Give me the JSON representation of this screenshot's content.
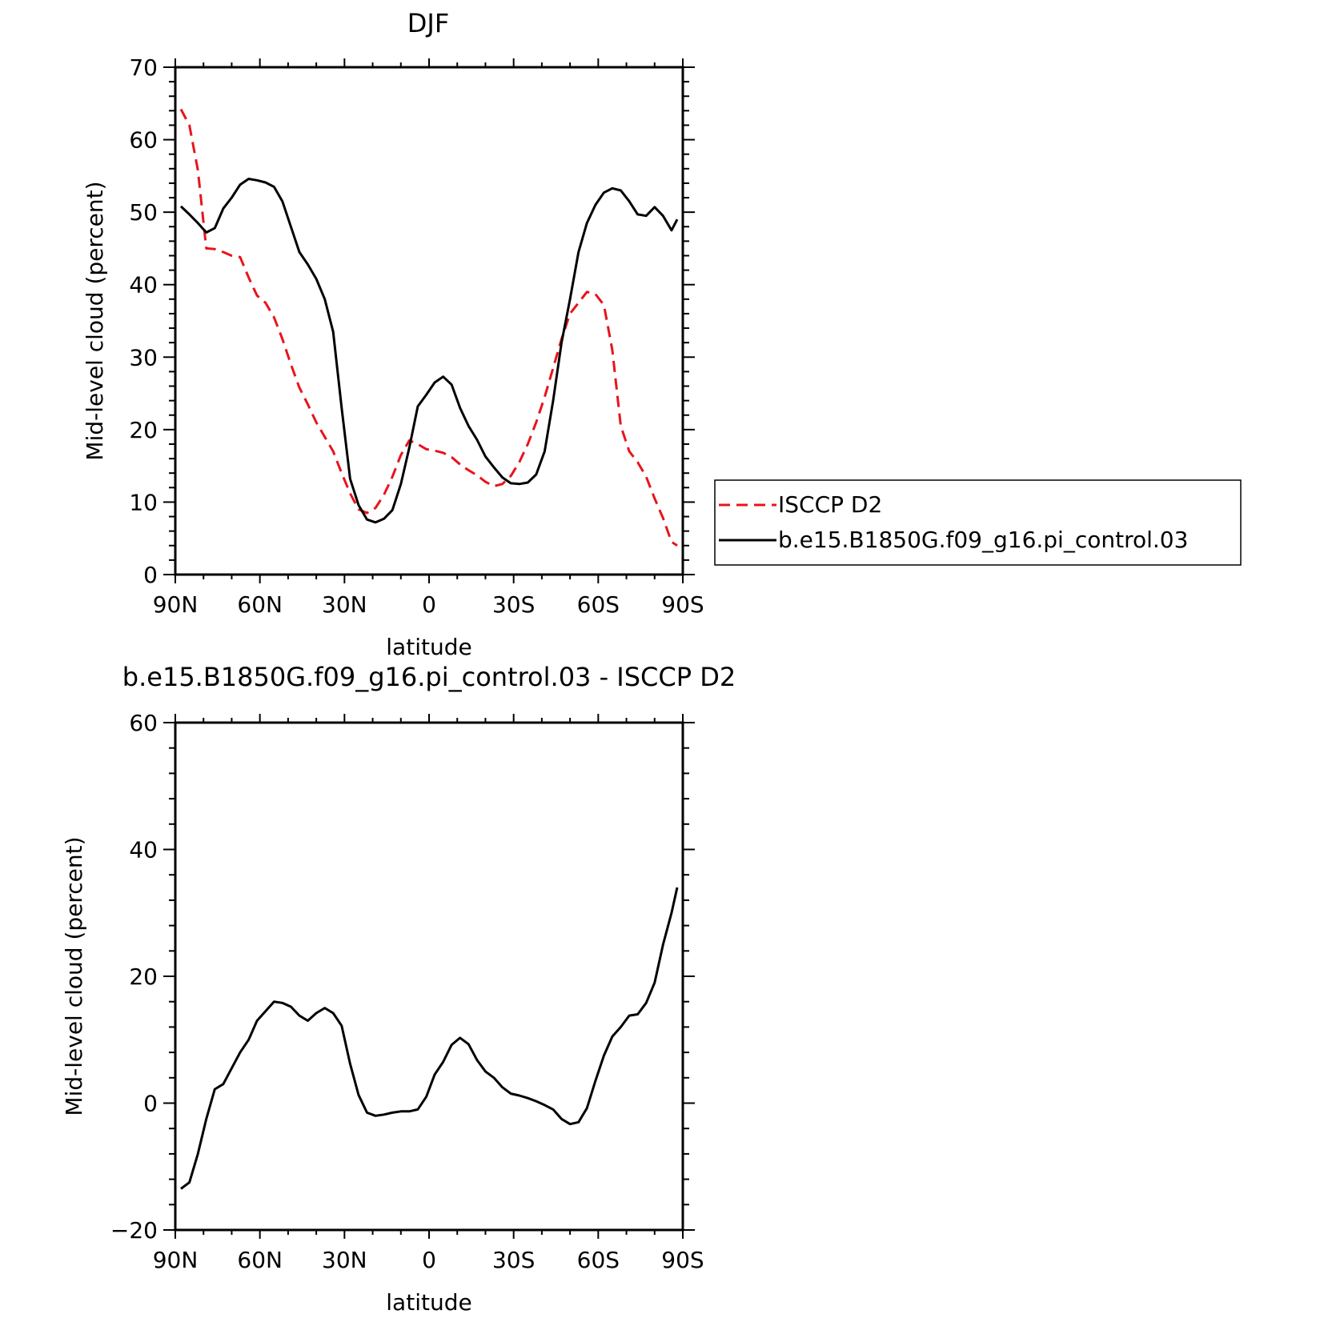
{
  "chart_data": [
    {
      "type": "line",
      "title": "DJF",
      "xlabel": "latitude",
      "ylabel": "Mid-level cloud (percent)",
      "xlim": [
        90,
        -90
      ],
      "ylim": [
        0,
        70
      ],
      "xticks": [
        90,
        60,
        30,
        0,
        -30,
        -60,
        -90
      ],
      "xtick_labels": [
        "90N",
        "60N",
        "30N",
        "0",
        "30S",
        "60S",
        "90S"
      ],
      "yticks": [
        0,
        10,
        20,
        30,
        40,
        50,
        60,
        70
      ],
      "ytick_labels": [
        "0",
        "10",
        "20",
        "30",
        "40",
        "50",
        "60",
        "70"
      ],
      "legend": "right",
      "series": [
        {
          "name": "ISCCP D2",
          "color": "#e8141b",
          "style": "dashed",
          "x": [
            88,
            85,
            82,
            79,
            76,
            73,
            70,
            67,
            64,
            61,
            58,
            55,
            52,
            49,
            46,
            43,
            40,
            37,
            34,
            31,
            28,
            25,
            22,
            19,
            16,
            13,
            10,
            7,
            4,
            1,
            -2,
            -5,
            -8,
            -11,
            -14,
            -17,
            -20,
            -23,
            -26,
            -29,
            -32,
            -35,
            -38,
            -41,
            -44,
            -47,
            -50,
            -53,
            -56,
            -59,
            -62,
            -65,
            -68,
            -71,
            -74,
            -77,
            -80,
            -83,
            -86,
            -88
          ],
          "y": [
            64.2,
            62.0,
            55.8,
            45.0,
            44.9,
            44.5,
            44.0,
            43.8,
            41.0,
            38.5,
            37.5,
            35.5,
            32.5,
            29.0,
            25.8,
            23.5,
            21.0,
            19.0,
            17.0,
            14.0,
            11.2,
            9.0,
            8.5,
            9.2,
            11.0,
            13.5,
            16.5,
            18.5,
            18.0,
            17.3,
            17.1,
            16.8,
            16.2,
            15.2,
            14.4,
            13.7,
            12.8,
            12.2,
            12.5,
            13.6,
            15.5,
            18.0,
            21.0,
            24.5,
            28.5,
            32.5,
            36.0,
            37.5,
            39.0,
            38.7,
            37.2,
            31.0,
            20.5,
            17.0,
            15.5,
            13.5,
            10.5,
            7.8,
            4.5,
            4.0
          ]
        },
        {
          "name": "b.e15.B1850G.f09_g16.pi_control.03",
          "color": "#000000",
          "style": "solid",
          "x": [
            88,
            85,
            82,
            79,
            76,
            73,
            70,
            67,
            64,
            61,
            58,
            55,
            52,
            49,
            46,
            43,
            40,
            37,
            34,
            31,
            28,
            25,
            22,
            19,
            16,
            13,
            10,
            7,
            4,
            1,
            -2,
            -5,
            -8,
            -11,
            -14,
            -17,
            -20,
            -23,
            -26,
            -29,
            -32,
            -35,
            -38,
            -41,
            -44,
            -47,
            -50,
            -53,
            -56,
            -59,
            -62,
            -65,
            -68,
            -71,
            -74,
            -77,
            -80,
            -83,
            -86,
            -88
          ],
          "y": [
            50.8,
            49.7,
            48.5,
            47.2,
            47.8,
            50.5,
            52.0,
            53.8,
            54.6,
            54.4,
            54.1,
            53.5,
            51.5,
            48.0,
            44.5,
            42.8,
            40.8,
            38.0,
            33.5,
            23.0,
            13.2,
            9.6,
            7.6,
            7.2,
            7.7,
            8.9,
            12.5,
            17.5,
            23.2,
            24.8,
            26.5,
            27.3,
            26.2,
            23.0,
            20.5,
            18.6,
            16.3,
            14.8,
            13.4,
            12.6,
            12.5,
            12.7,
            13.8,
            17.0,
            24.0,
            32.0,
            38.0,
            44.5,
            48.5,
            51.0,
            52.7,
            53.3,
            53.0,
            51.5,
            49.7,
            49.5,
            50.7,
            49.5,
            47.5,
            49.0
          ]
        }
      ]
    },
    {
      "type": "line",
      "title": "b.e15.B1850G.f09_g16.pi_control.03 - ISCCP D2",
      "xlabel": "latitude",
      "ylabel": "Mid-level cloud (percent)",
      "xlim": [
        90,
        -90
      ],
      "ylim": [
        -20,
        60
      ],
      "xticks": [
        90,
        60,
        30,
        0,
        -30,
        -60,
        -90
      ],
      "xtick_labels": [
        "90N",
        "60N",
        "30N",
        "0",
        "30S",
        "60S",
        "90S"
      ],
      "yticks": [
        -20,
        0,
        20,
        40,
        60
      ],
      "ytick_labels": [
        "−20",
        "0",
        "20",
        "40",
        "60"
      ],
      "series": [
        {
          "color": "#000000",
          "style": "solid",
          "x": [
            88,
            85,
            82,
            79,
            76,
            73,
            70,
            67,
            64,
            61,
            58,
            55,
            52,
            49,
            46,
            43,
            40,
            37,
            34,
            31,
            28,
            25,
            22,
            19,
            16,
            13,
            10,
            7,
            4,
            1,
            -2,
            -5,
            -8,
            -11,
            -14,
            -17,
            -20,
            -23,
            -26,
            -29,
            -32,
            -35,
            -38,
            -41,
            -44,
            -47,
            -50,
            -53,
            -56,
            -59,
            -62,
            -65,
            -68,
            -71,
            -74,
            -77,
            -80,
            -83,
            -86,
            -88
          ],
          "y": [
            -13.5,
            -12.5,
            -8.0,
            -2.5,
            2.2,
            3.0,
            5.5,
            8.0,
            10.0,
            13.0,
            14.5,
            16.0,
            15.8,
            15.2,
            13.8,
            13.0,
            14.2,
            15.0,
            14.2,
            12.2,
            6.2,
            1.3,
            -1.5,
            -2.0,
            -1.8,
            -1.5,
            -1.3,
            -1.3,
            -1.0,
            1.0,
            4.5,
            6.5,
            9.2,
            10.3,
            9.3,
            6.8,
            5.0,
            4.0,
            2.5,
            1.5,
            1.2,
            0.8,
            0.3,
            -0.3,
            -1.0,
            -2.5,
            -3.3,
            -3.0,
            -0.8,
            3.5,
            7.5,
            10.5,
            12.0,
            13.8,
            14.0,
            15.8,
            19.0,
            25.0,
            30.0,
            34.0
          ]
        }
      ]
    }
  ]
}
